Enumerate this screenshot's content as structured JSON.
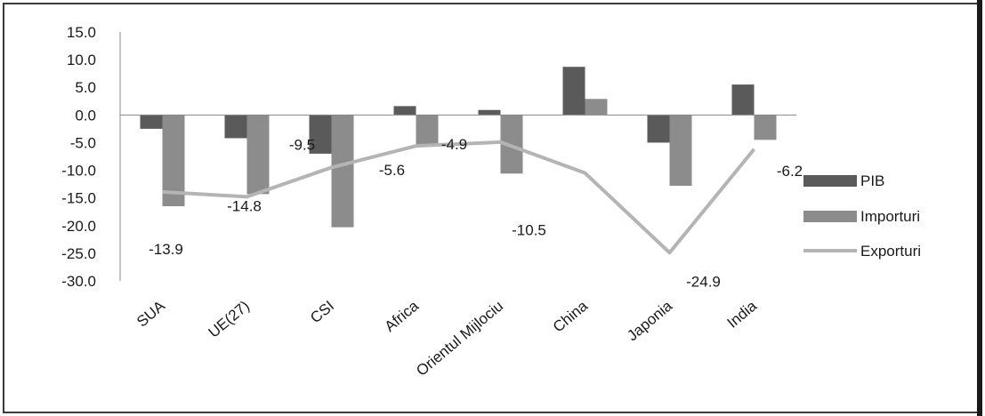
{
  "chart_data": {
    "type": "bar",
    "title": "",
    "xlabel": "",
    "ylabel": "",
    "categories": [
      "SUA",
      "UE(27)",
      "CSI",
      "Africa",
      "Orientul Mijlociu",
      "China",
      "Japonia",
      "India"
    ],
    "ylim": [
      -30,
      15
    ],
    "yticks": [
      15,
      10,
      5,
      0,
      -5,
      -10,
      -15,
      -20,
      -25,
      -30
    ],
    "ytick_labels": [
      "15.0",
      "10.0",
      "5.0",
      "0.0",
      "-5.0",
      "-10.0",
      "-15.0",
      "-20.0",
      "-25.0",
      "-30.0"
    ],
    "grid": false,
    "legend_position": "right",
    "series": [
      {
        "name": "PIB",
        "type": "bar",
        "color": "#5a5a5a",
        "values": [
          -2.5,
          -4.2,
          -7.0,
          1.6,
          0.9,
          8.7,
          -5.0,
          5.5
        ]
      },
      {
        "name": "Importuri",
        "type": "bar",
        "color": "#8c8c8c",
        "values": [
          -16.5,
          -14.3,
          -20.3,
          -5.5,
          -10.6,
          2.9,
          -12.8,
          -4.5
        ]
      },
      {
        "name": "Exporturi",
        "type": "line",
        "color": "#b4b4b4",
        "values": [
          -13.9,
          -14.8,
          -9.5,
          -5.6,
          -4.9,
          -10.5,
          -24.9,
          -6.2
        ],
        "data_labels": [
          "-13.9",
          "-14.8",
          "-9.5",
          "-5.6",
          "-4.9",
          "-10.5",
          "-24.9",
          "-6.2"
        ]
      }
    ]
  }
}
